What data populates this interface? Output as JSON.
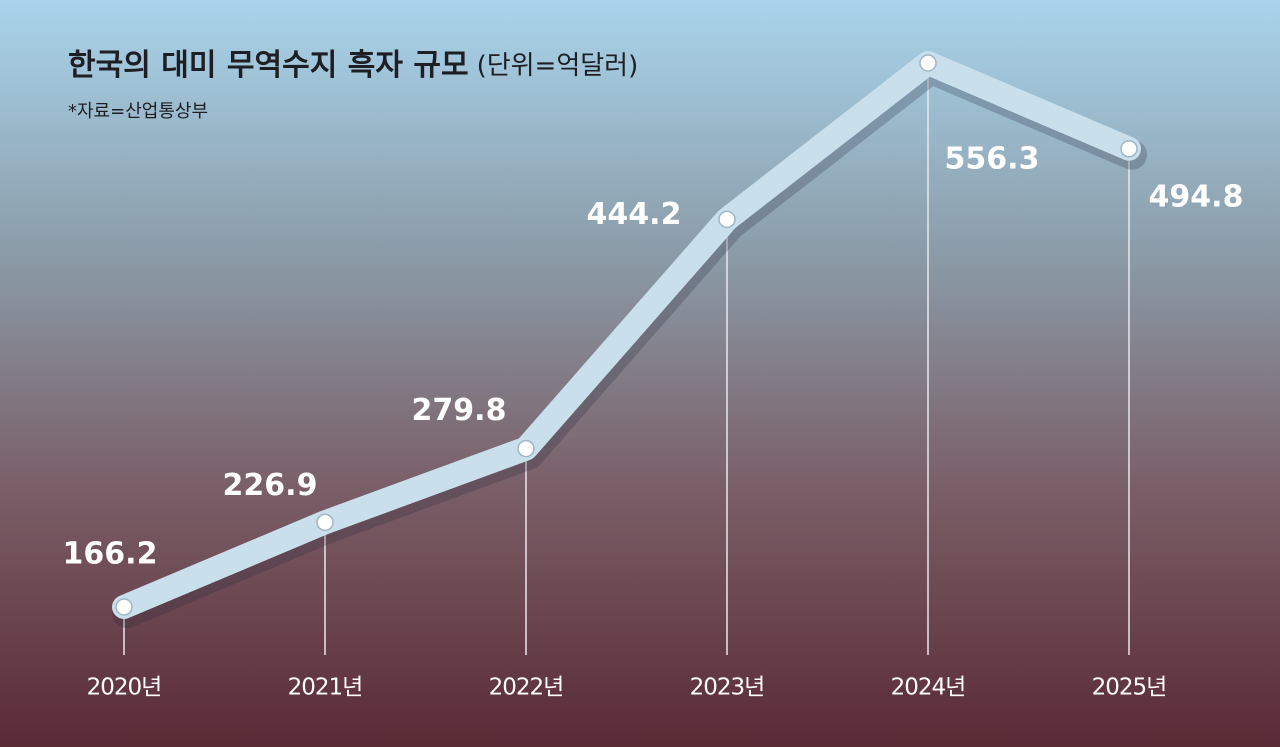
{
  "chart_data": {
    "type": "line",
    "title": "한국의 대미 무역수지 흑자 규모",
    "subtitle": "(단위=억달러)",
    "source": "*자료=산업통상부",
    "categories": [
      "2020년",
      "2021년",
      "2022년",
      "2023년",
      "2024년",
      "2025년"
    ],
    "values": [
      166.2,
      226.9,
      279.8,
      444.2,
      556.3,
      494.8
    ],
    "color": "#c9dfec"
  }
}
